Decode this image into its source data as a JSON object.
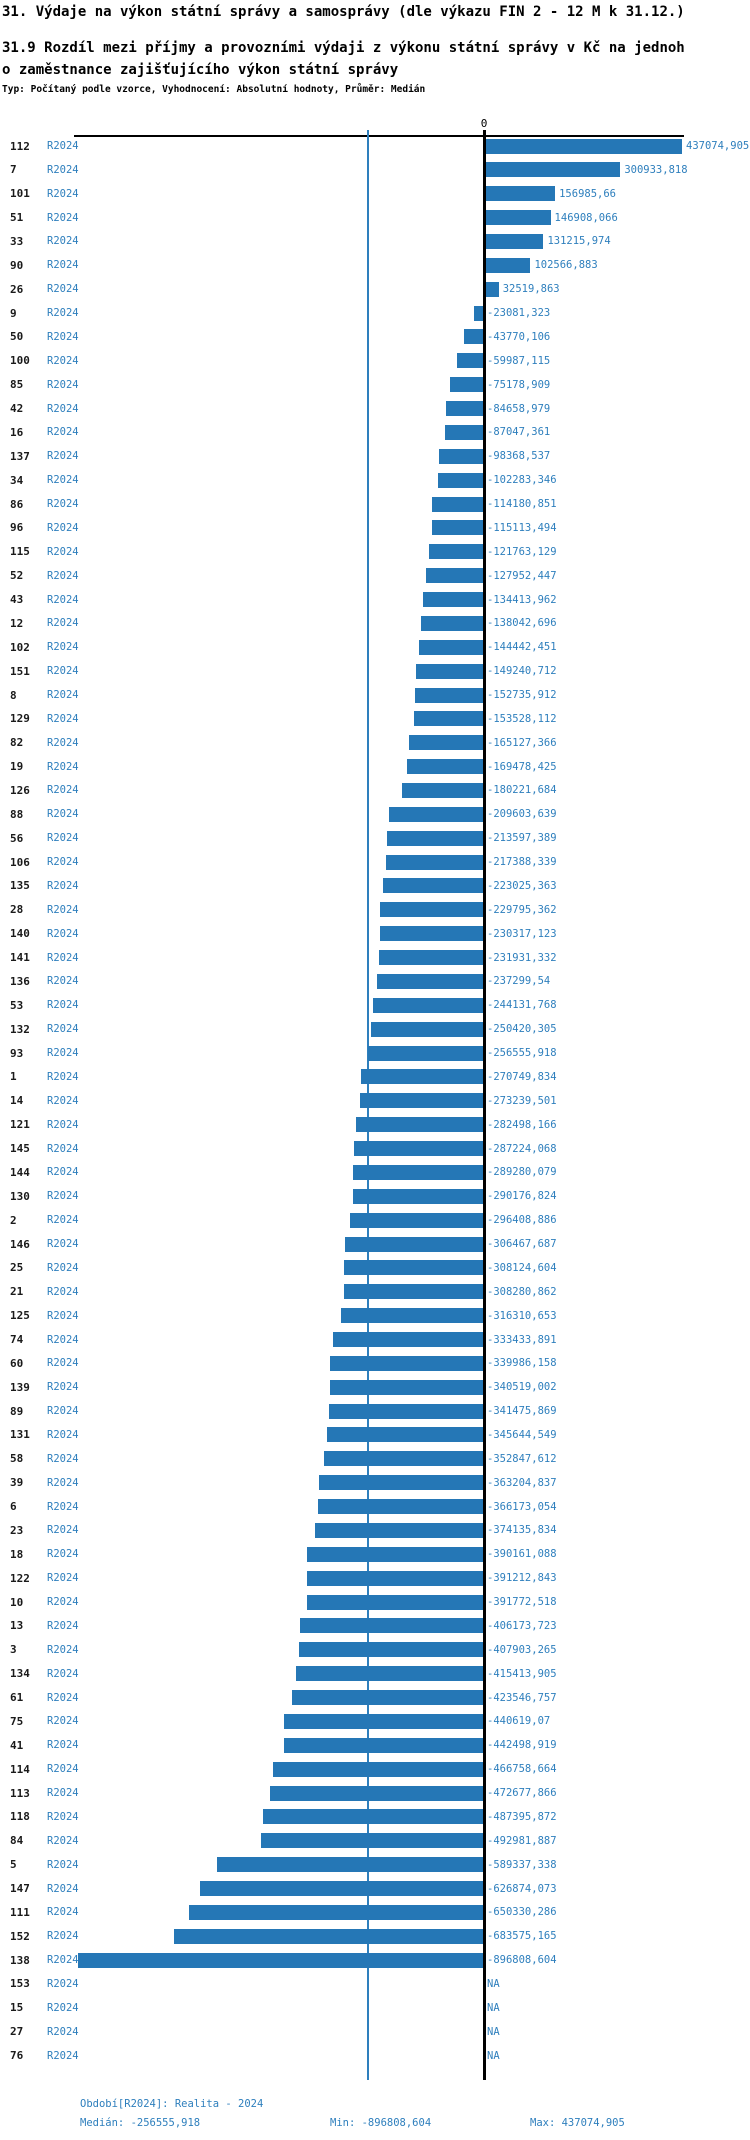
{
  "header": {
    "title": "31. Výdaje na výkon státní správy a samosprávy (dle výkazu FIN 2 - 12 M k 31.12.)",
    "subtitle_line1": "31.9 Rozdíl mezi příjmy a provozními výdaji z výkonu státní správy v Kč na jednoh",
    "subtitle_line2": "o zaměstnance zajišťujícího výkon státní správy",
    "meta": "Typ: Počítaný podle vzorce, Vyhodnocení: Absolutní hodnoty, Průměr: Medián"
  },
  "chart_data": {
    "type": "bar",
    "orientation": "horizontal",
    "title": "31.9 Rozdíl mezi příjmy a provozními výdaji z výkonu státní správy v Kč na jednoho zaměstnance zajišťujícího výkon státní správy",
    "series_label": "R2024",
    "zero_label": "0",
    "xlim": [
      -896808.604,
      437074.905
    ],
    "median": -256555.918,
    "min": -896808.604,
    "max": 437074.905,
    "legend_position": "none",
    "grid": false,
    "categories": [
      "112",
      "7",
      "101",
      "51",
      "33",
      "90",
      "26",
      "9",
      "50",
      "100",
      "85",
      "42",
      "16",
      "137",
      "34",
      "86",
      "96",
      "115",
      "52",
      "43",
      "12",
      "102",
      "151",
      "8",
      "129",
      "82",
      "19",
      "126",
      "88",
      "56",
      "106",
      "135",
      "28",
      "140",
      "141",
      "136",
      "53",
      "132",
      "93",
      "1",
      "14",
      "121",
      "145",
      "144",
      "130",
      "2",
      "146",
      "25",
      "21",
      "125",
      "74",
      "60",
      "139",
      "89",
      "131",
      "58",
      "39",
      "6",
      "23",
      "18",
      "122",
      "10",
      "13",
      "3",
      "134",
      "61",
      "75",
      "41",
      "114",
      "113",
      "118",
      "84",
      "5",
      "147",
      "111",
      "152",
      "138",
      "153",
      "15",
      "27",
      "76"
    ],
    "values": [
      437074.905,
      300933.818,
      156985.66,
      146908.066,
      131215.974,
      102566.883,
      32519.863,
      -23081.323,
      -43770.106,
      -59987.115,
      -75178.909,
      -84658.979,
      -87047.361,
      -98368.537,
      -102283.346,
      -114180.851,
      -115113.494,
      -121763.129,
      -127952.447,
      -134413.962,
      -138042.696,
      -144442.451,
      -149240.712,
      -152735.912,
      -153528.112,
      -165127.366,
      -169478.425,
      -180221.684,
      -209603.639,
      -213597.389,
      -217388.339,
      -223025.363,
      -229795.362,
      -230317.123,
      -231931.332,
      -237299.54,
      -244131.768,
      -250420.305,
      -256555.918,
      -270749.834,
      -273239.501,
      -282498.166,
      -287224.068,
      -289280.079,
      -290176.824,
      -296408.886,
      -306467.687,
      -308124.604,
      -308280.862,
      -316310.653,
      -333433.891,
      -339986.158,
      -340519.002,
      -341475.869,
      -345644.549,
      -352847.612,
      -363204.837,
      -366173.054,
      -374135.834,
      -390161.088,
      -391212.843,
      -391772.518,
      -406173.723,
      -407903.265,
      -415413.905,
      -423546.757,
      -440619.07,
      -442498.919,
      -466758.664,
      -472677.866,
      -487395.872,
      -492981.887,
      -589337.338,
      -626874.073,
      -650330.286,
      -683575.165,
      -896808.604,
      null,
      null,
      null,
      null
    ],
    "value_labels": [
      "437074,905",
      "300933,818",
      "156985,66",
      "146908,066",
      "131215,974",
      "102566,883",
      "32519,863",
      "-23081,323",
      "-43770,106",
      "-59987,115",
      "-75178,909",
      "-84658,979",
      "-87047,361",
      "-98368,537",
      "-102283,346",
      "-114180,851",
      "-115113,494",
      "-121763,129",
      "-127952,447",
      "-134413,962",
      "-138042,696",
      "-144442,451",
      "-149240,712",
      "-152735,912",
      "-153528,112",
      "-165127,366",
      "-169478,425",
      "-180221,684",
      "-209603,639",
      "-213597,389",
      "-217388,339",
      "-223025,363",
      "-229795,362",
      "-230317,123",
      "-231931,332",
      "-237299,54",
      "-244131,768",
      "-250420,305",
      "-256555,918",
      "-270749,834",
      "-273239,501",
      "-282498,166",
      "-287224,068",
      "-289280,079",
      "-290176,824",
      "-296408,886",
      "-306467,687",
      "-308124,604",
      "-308280,862",
      "-316310,653",
      "-333433,891",
      "-339986,158",
      "-340519,002",
      "-341475,869",
      "-345644,549",
      "-352847,612",
      "-363204,837",
      "-366173,054",
      "-374135,834",
      "-390161,088",
      "-391212,843",
      "-391772,518",
      "-406173,723",
      "-407903,265",
      "-415413,905",
      "-423546,757",
      "-440619,07",
      "-442498,919",
      "-466758,664",
      "-472677,866",
      "-487395,872",
      "-492981,887",
      "-589337,338",
      "-626874,073",
      "-650330,286",
      "-683575,165",
      "-896808,604",
      "NA",
      "NA",
      "NA",
      "NA"
    ],
    "colors": {
      "bar": "#2577b6",
      "blue_text": "#2e7fbd",
      "median_line": "#2e7fbd",
      "axis": "#000000"
    }
  },
  "footer": {
    "period": "Období[R2024]: Realita - 2024",
    "median": "Medián: -256555,918",
    "min": "Min: -896808,604",
    "max": "Max: 437074,905"
  }
}
